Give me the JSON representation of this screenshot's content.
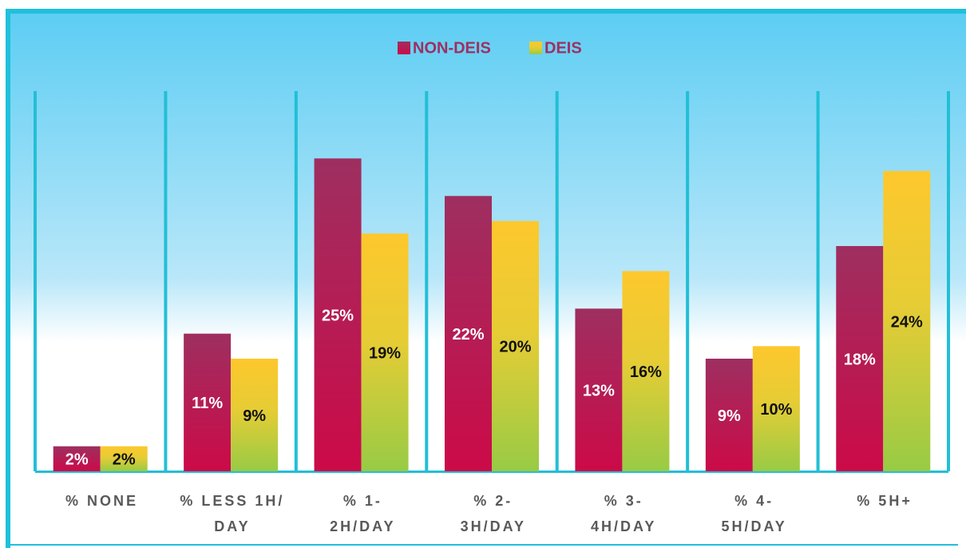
{
  "chart_data": {
    "type": "bar",
    "categories": [
      "% NONE",
      "% LESS 1H/\nDAY",
      "% 1-\n2H/DAY",
      "% 2-\n3H/DAY",
      "% 3-\n4H/DAY",
      "% 4-\n5H/DAY",
      "% 5H+"
    ],
    "series": [
      {
        "name": "NON-DEIS",
        "color": "#9e2f60",
        "values": [
          2,
          11,
          25,
          22,
          13,
          9,
          18
        ],
        "value_labels": [
          "2%",
          "11%",
          "25%",
          "22%",
          "13%",
          "9%",
          "18%"
        ]
      },
      {
        "name": "DEIS",
        "color": "#fdc82d",
        "values": [
          2,
          9,
          19,
          20,
          16,
          10,
          24
        ],
        "value_labels": [
          "2%",
          "9%",
          "19%",
          "20%",
          "16%",
          "10%",
          "24%"
        ]
      }
    ],
    "ylim": [
      0,
      30
    ],
    "legend": "top"
  }
}
